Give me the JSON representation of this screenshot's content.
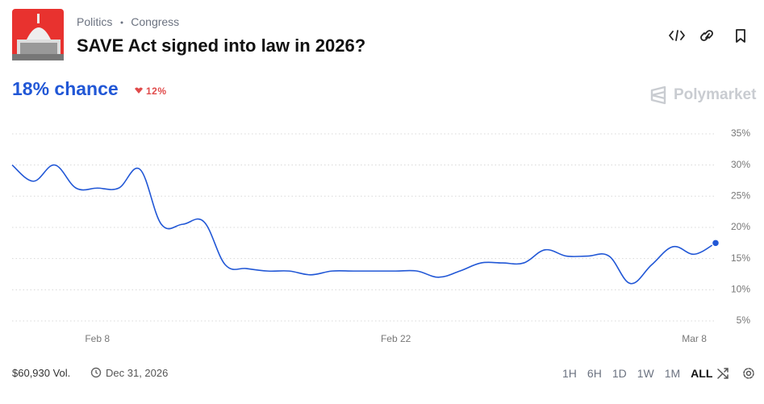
{
  "header": {
    "breadcrumb": [
      "Politics",
      "Congress"
    ],
    "title": "SAVE Act signed into law in 2026?"
  },
  "chance": {
    "text": "18% chance",
    "change": "12%"
  },
  "brand": "Polymarket",
  "chart_data": {
    "type": "line",
    "x": [
      "Feb 4",
      "Feb 5",
      "Feb 6",
      "Feb 7",
      "Feb 8",
      "Feb 9",
      "Feb 10",
      "Feb 11",
      "Feb 12",
      "Feb 13",
      "Feb 14",
      "Feb 15",
      "Feb 16",
      "Feb 17",
      "Feb 18",
      "Feb 19",
      "Feb 20",
      "Feb 21",
      "Feb 22",
      "Feb 23",
      "Feb 24",
      "Feb 25",
      "Feb 26",
      "Feb 27",
      "Feb 28",
      "Mar 1",
      "Mar 2",
      "Mar 3",
      "Mar 4",
      "Mar 5",
      "Mar 6",
      "Mar 7",
      "Mar 8",
      "Mar 9"
    ],
    "series": [
      {
        "color": "#2157d6",
        "values": [
          30,
          27.4,
          30,
          26.3,
          26.3,
          26.3,
          29.3,
          20.5,
          20.5,
          20.9,
          14,
          13.4,
          13,
          13,
          12.4,
          13,
          13,
          13,
          13,
          13,
          12,
          13,
          14.3,
          14.3,
          14.3,
          16.4,
          15.4,
          15.4,
          15.4,
          11,
          14,
          16.9,
          15.7,
          17.5
        ]
      }
    ],
    "xticks": [
      "Feb 8",
      "Feb 22",
      "Mar 8"
    ],
    "ylim": [
      2,
      37
    ],
    "yticks": [
      {
        "value": 5,
        "label": "5%"
      },
      {
        "value": 10,
        "label": "10%"
      },
      {
        "value": 15,
        "label": "15%"
      },
      {
        "value": 20,
        "label": "20%"
      },
      {
        "value": 25,
        "label": "25%"
      },
      {
        "value": 30,
        "label": "30%"
      },
      {
        "value": 35,
        "label": "35%"
      }
    ],
    "grid": true
  },
  "footer": {
    "volume": "$60,930 Vol.",
    "end_date": "Dec 31, 2026",
    "ranges": [
      "1H",
      "6H",
      "1D",
      "1W",
      "1M",
      "ALL"
    ],
    "selected": "ALL"
  }
}
